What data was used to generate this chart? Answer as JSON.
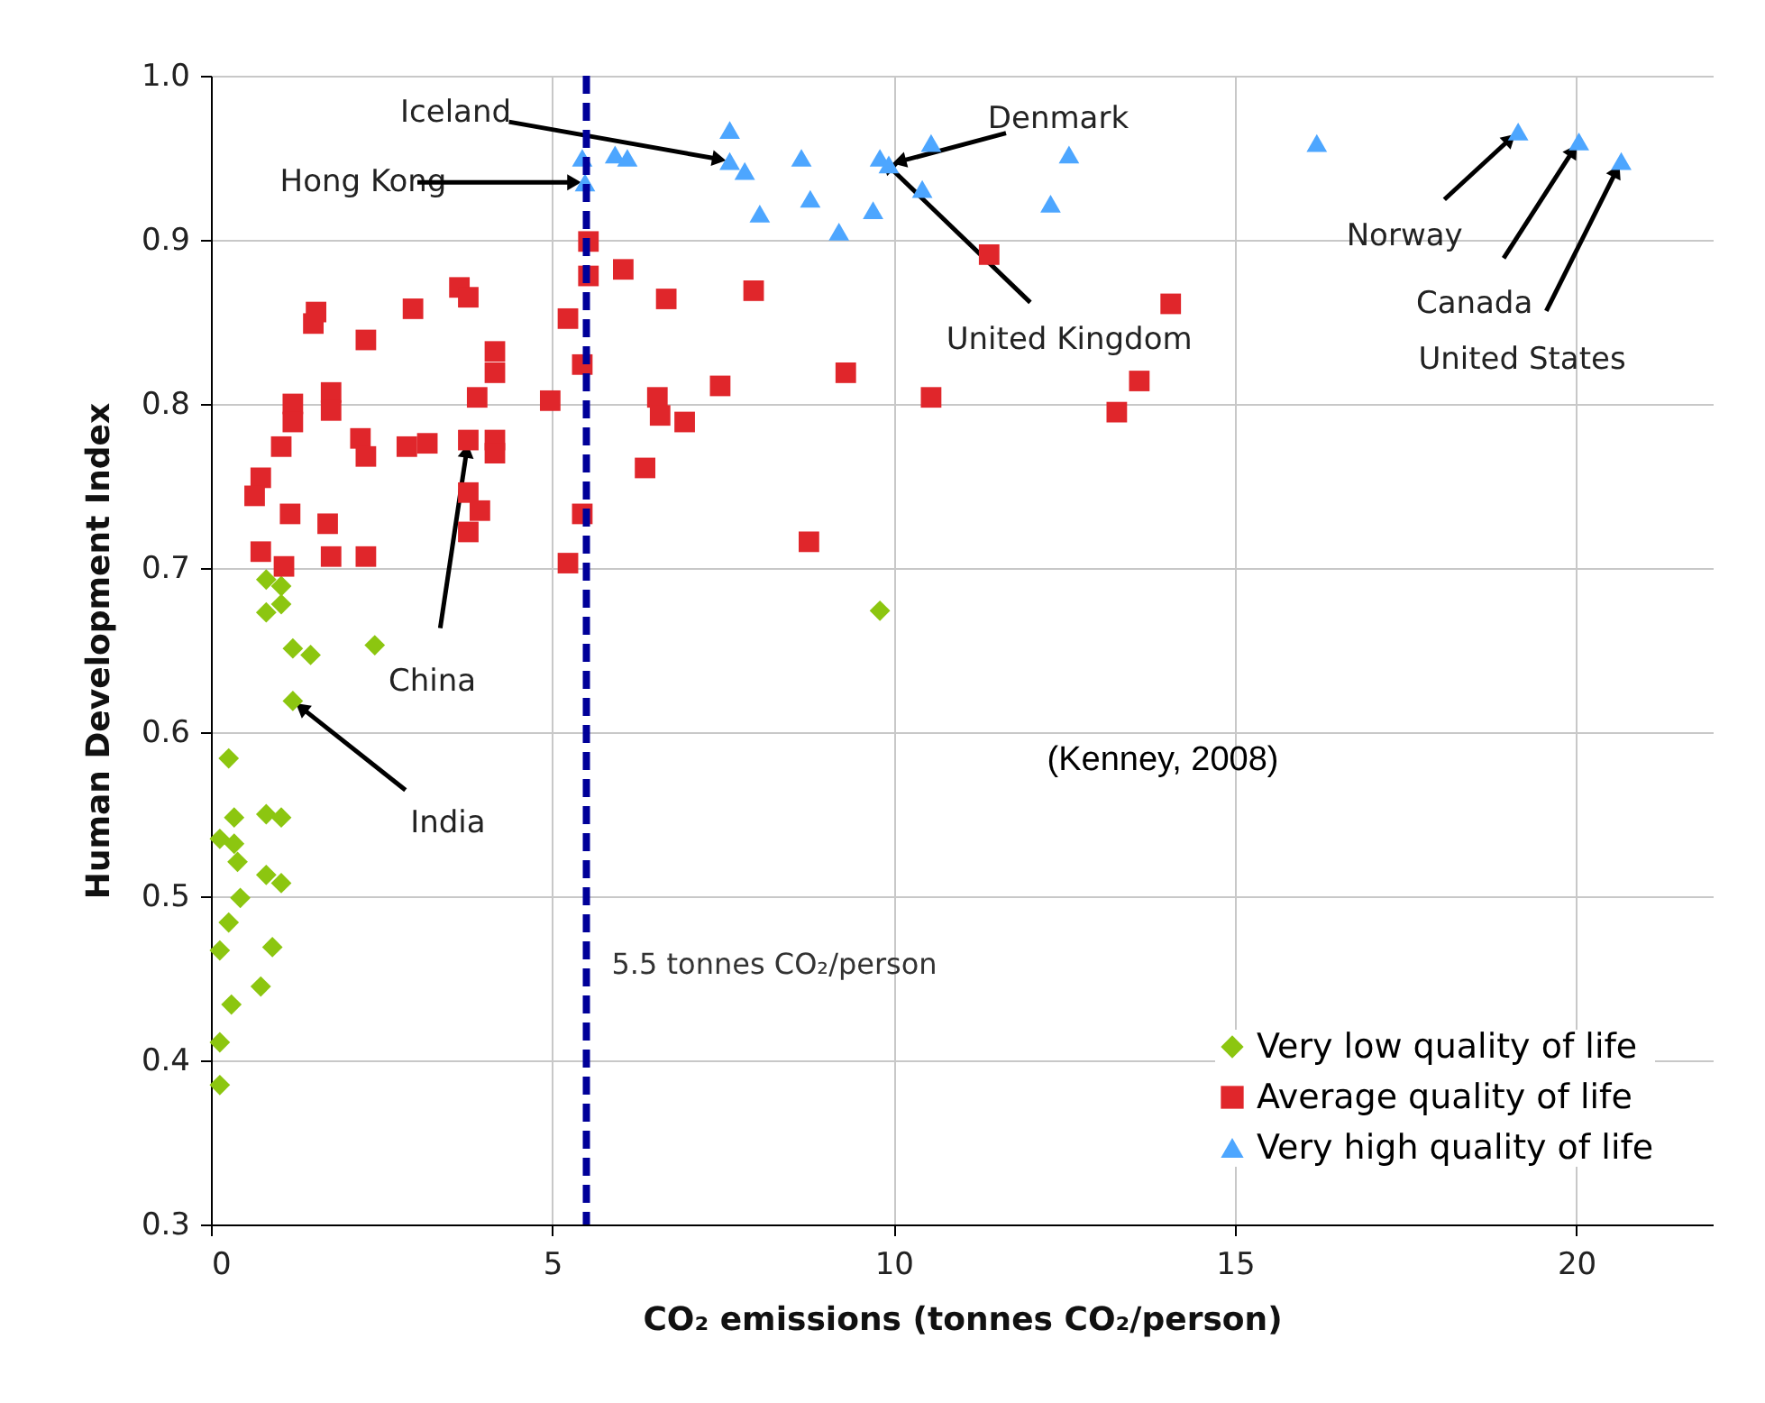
{
  "chart_data": {
    "type": "scatter",
    "xlabel": "CO₂ emissions (tonnes CO₂/person)",
    "ylabel": "Human Development Index",
    "xlim": [
      0,
      22
    ],
    "ylim": [
      0.3,
      1.0
    ],
    "xticks": [
      0,
      5,
      10,
      15,
      20
    ],
    "yticks": [
      0.3,
      0.4,
      0.5,
      0.6,
      0.7,
      0.8,
      0.9,
      {
        "value": 1.0,
        "label": "1.0"
      }
    ],
    "grid": true,
    "legend": "bottom right",
    "series": [
      {
        "name": "Very low quality of life",
        "color": "#8cc610",
        "marker": "diamond",
        "x": [
          0.81,
          1.03,
          0.81,
          1.03,
          1.2,
          1.46,
          2.4,
          1.2,
          0.26,
          0.34,
          0.81,
          1.03,
          0.13,
          0.34,
          0.39,
          0.81,
          1.03,
          0.43,
          0.26,
          0.13,
          0.9,
          0.73,
          0.3,
          0.13,
          0.13,
          9.8
        ],
        "values": [
          0.693,
          0.689,
          0.673,
          0.678,
          0.651,
          0.647,
          0.653,
          0.619,
          0.584,
          0.548,
          0.55,
          0.548,
          0.535,
          0.532,
          0.521,
          0.513,
          0.508,
          0.499,
          0.484,
          0.467,
          0.469,
          0.445,
          0.434,
          0.411,
          0.385,
          0.674
        ]
      },
      {
        "name": "Average quality of life",
        "color": "#e0262b",
        "marker": "square",
        "x": [
          5.53,
          5.53,
          6.04,
          1.54,
          1.5,
          2.27,
          2.96,
          3.64,
          3.77,
          5.23,
          4.16,
          4.16,
          5.44,
          3.9,
          4.97,
          1.2,
          1.2,
          1.76,
          1.76,
          2.19,
          2.27,
          2.87,
          3.17,
          3.77,
          4.16,
          4.16,
          1.03,
          0.73,
          0.64,
          1.16,
          1.71,
          3.77,
          3.94,
          3.77,
          5.44,
          0.73,
          1.07,
          1.76,
          2.27,
          5.23,
          6.67,
          7.95,
          6.54,
          6.58,
          6.94,
          7.46,
          9.3,
          10.55,
          6.36,
          8.76,
          11.4,
          14.06,
          13.6,
          13.27
        ],
        "values": [
          0.899,
          0.878,
          0.882,
          0.856,
          0.849,
          0.839,
          0.858,
          0.871,
          0.865,
          0.852,
          0.832,
          0.819,
          0.824,
          0.804,
          0.802,
          0.8,
          0.789,
          0.807,
          0.796,
          0.779,
          0.768,
          0.774,
          0.776,
          0.778,
          0.778,
          0.77,
          0.774,
          0.755,
          0.744,
          0.733,
          0.727,
          0.746,
          0.735,
          0.722,
          0.733,
          0.71,
          0.701,
          0.707,
          0.707,
          0.703,
          0.864,
          0.869,
          0.804,
          0.793,
          0.789,
          0.811,
          0.819,
          0.804,
          0.761,
          0.716,
          0.891,
          0.861,
          0.814,
          0.795
        ]
      },
      {
        "name": "Very high quality of life",
        "color": "#4da6ff",
        "marker": "triangle",
        "x": [
          7.6,
          5.92,
          6.1,
          5.44,
          5.48,
          7.6,
          7.82,
          8.65,
          8.78,
          8.04,
          9.8,
          9.93,
          9.7,
          9.2,
          10.55,
          10.42,
          12.57,
          12.3,
          16.2,
          19.15,
          20.04,
          20.66
        ],
        "values": [
          0.967,
          0.952,
          0.95,
          0.95,
          0.935,
          0.948,
          0.942,
          0.95,
          0.925,
          0.916,
          0.95,
          0.946,
          0.918,
          0.905,
          0.959,
          0.931,
          0.952,
          0.922,
          0.959,
          0.966,
          0.96,
          0.948
        ]
      }
    ],
    "ref_lines": [
      {
        "axis": "x",
        "value": 5.5,
        "label": "5.5 tonnes CO₂/person",
        "color": "#000099",
        "line_style": "dashed"
      }
    ],
    "annotations": [
      {
        "text": "Iceland",
        "x": 7.6,
        "y": 0.948
      },
      {
        "text": "Hong Kong",
        "x": 5.48,
        "y": 0.935
      },
      {
        "text": "Denmark",
        "x": 9.93,
        "y": 0.946
      },
      {
        "text": "United Kingdom",
        "x": 9.8,
        "y": 0.95
      },
      {
        "text": "Norway",
        "x": 19.15,
        "y": 0.966
      },
      {
        "text": "Canada",
        "x": 20.04,
        "y": 0.96
      },
      {
        "text": "United States",
        "x": 20.66,
        "y": 0.948
      },
      {
        "text": "China",
        "x": 3.77,
        "y": 0.778
      },
      {
        "text": "India",
        "x": 1.2,
        "y": 0.619
      },
      "(Kenney, 2008)"
    ]
  }
}
